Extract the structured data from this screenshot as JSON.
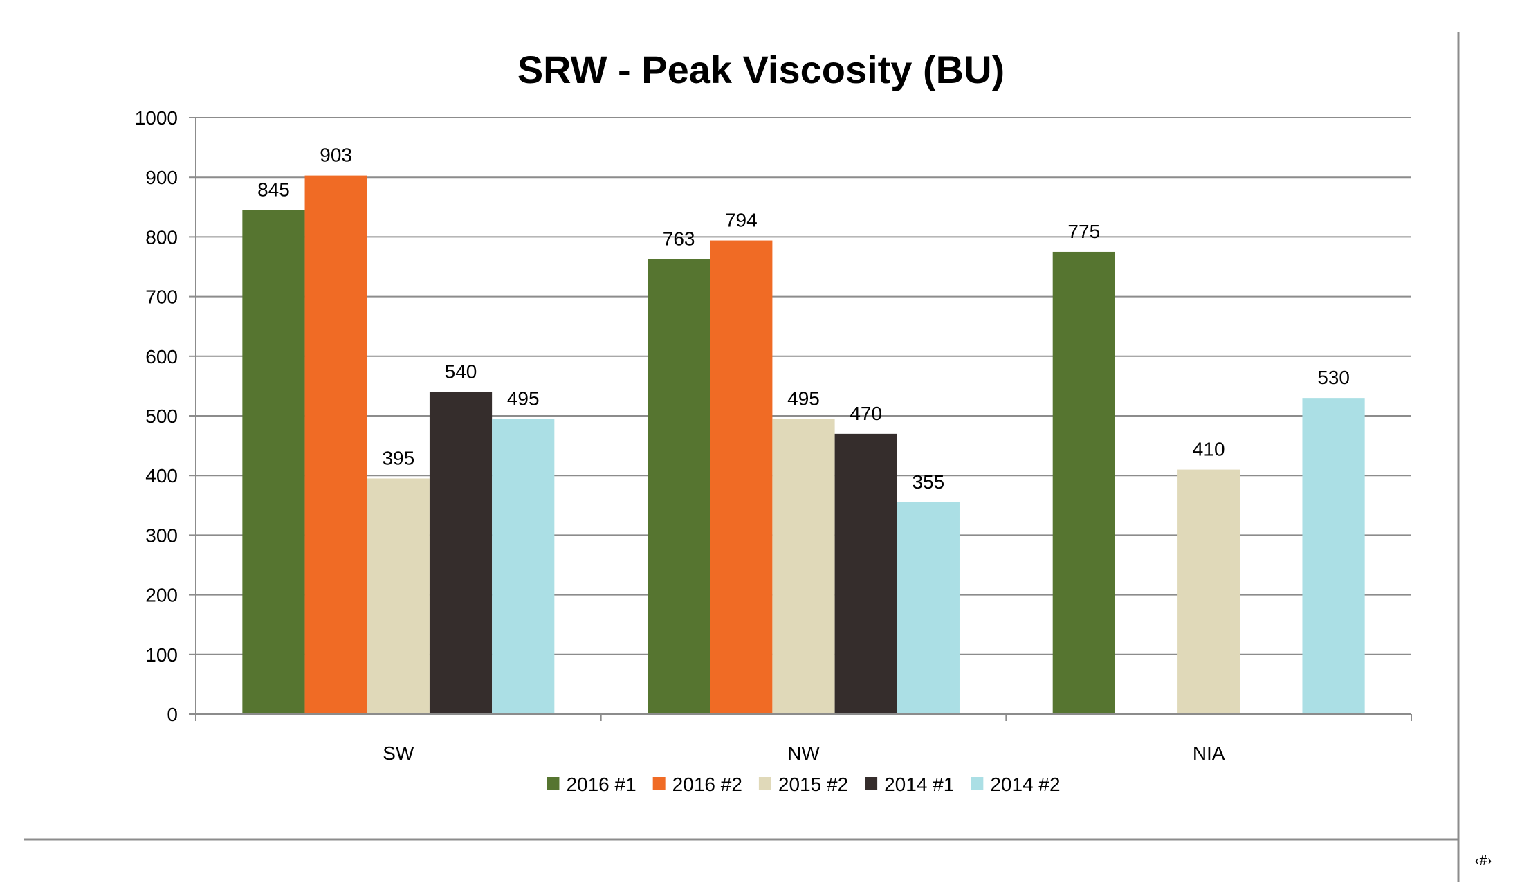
{
  "page": {
    "number_label": "‹#›"
  },
  "chart_data": {
    "type": "bar",
    "title": "SRW - Peak Viscosity (BU)",
    "xlabel": "",
    "ylabel": "",
    "categories": [
      "SW",
      "NW",
      "NIA"
    ],
    "ylim": [
      0,
      1000
    ],
    "yticks": [
      0,
      100,
      200,
      300,
      400,
      500,
      600,
      700,
      800,
      900,
      1000
    ],
    "grid": true,
    "legend_position": "bottom",
    "series": [
      {
        "name": "2016 #1",
        "color": "#567530",
        "values": [
          845,
          763,
          775
        ]
      },
      {
        "name": "2016 #2",
        "color": "#F06B25",
        "values": [
          903,
          794,
          null
        ]
      },
      {
        "name": "2015 #2",
        "color": "#E0D9B9",
        "values": [
          395,
          495,
          410
        ]
      },
      {
        "name": "2014 #1",
        "color": "#352D2C",
        "values": [
          540,
          470,
          null
        ]
      },
      {
        "name": "2014 #2",
        "color": "#ABDFE5",
        "values": [
          495,
          355,
          530
        ]
      }
    ]
  }
}
